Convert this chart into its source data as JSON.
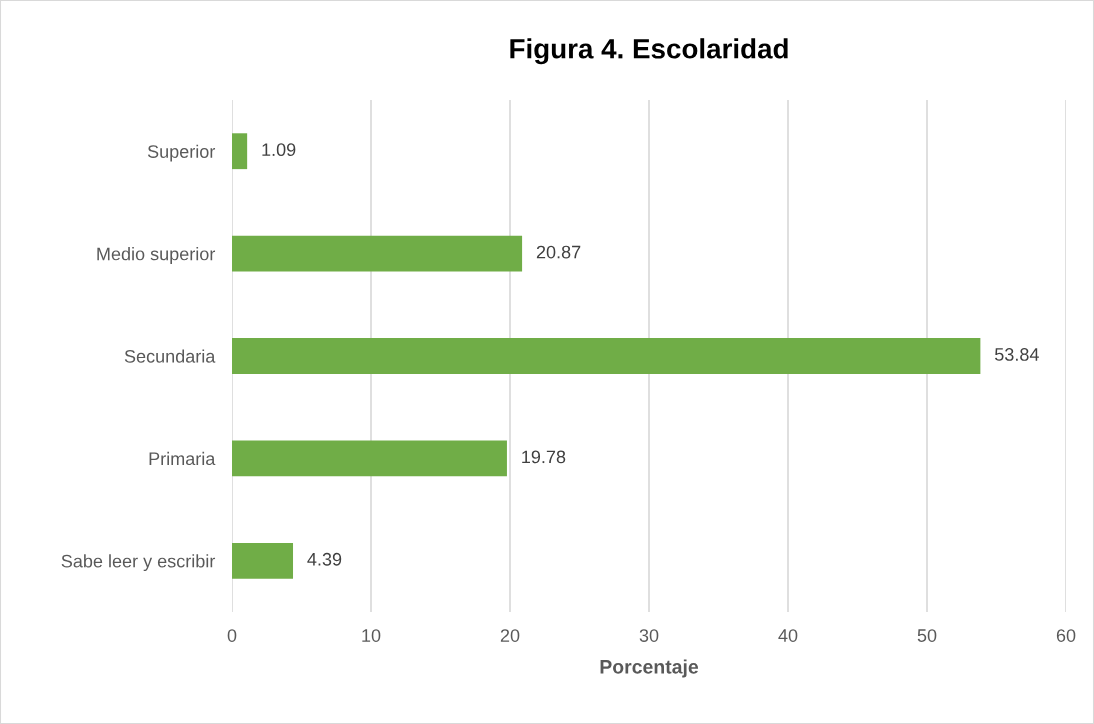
{
  "chart_data": {
    "type": "bar",
    "orientation": "horizontal",
    "title": "Figura 4. Escolaridad",
    "xlabel": "Porcentaje",
    "categories": [
      "Superior",
      "Medio superior",
      "Secundaria",
      "Primaria",
      "Sabe leer y escribir"
    ],
    "values": [
      1.09,
      20.87,
      53.84,
      19.78,
      4.39
    ],
    "color": "#70ad47",
    "xlim": [
      0,
      60
    ],
    "xticks": [
      0,
      10,
      20,
      30,
      40,
      50,
      60
    ],
    "grid": "x",
    "data_labels": true
  }
}
